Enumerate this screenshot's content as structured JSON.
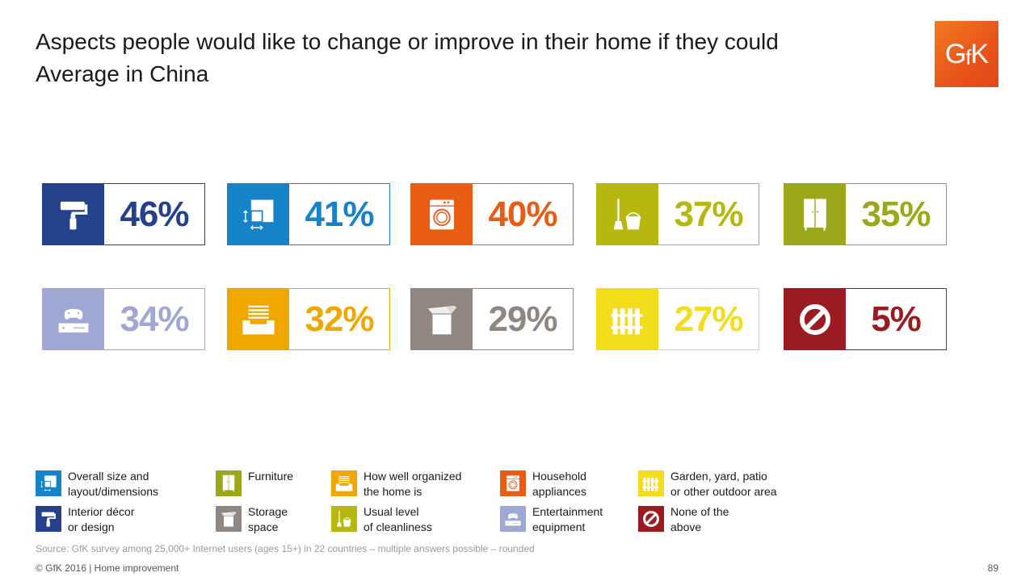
{
  "title": {
    "line1": "Aspects people would like to change or improve in their home if they could",
    "line2": "Average in China"
  },
  "logo": "GfK",
  "chart_data": {
    "type": "table",
    "categories": [
      "Interior décor or design",
      "Overall size and layout/dimensions",
      "Household appliances",
      "Usual level of cleanliness",
      "Furniture",
      "Entertainment equipment",
      "How well organized the home is",
      "Storage space",
      "Garden, yard, patio or other outdoor area",
      "None of the above"
    ],
    "values": [
      46,
      41,
      40,
      37,
      35,
      34,
      32,
      29,
      27,
      5
    ],
    "labels": [
      "46%",
      "41%",
      "40%",
      "37%",
      "35%",
      "34%",
      "32%",
      "29%",
      "27%",
      "5%"
    ],
    "colors": [
      "#25418a",
      "#1683c9",
      "#e85d13",
      "#b6b80e",
      "#9aa81a",
      "#9ea8d2",
      "#f0a800",
      "#8f8780",
      "#f3dc1a",
      "#9c1b22"
    ],
    "icons": [
      "paint-roller-icon",
      "layout-dimensions-icon",
      "washing-machine-icon",
      "broom-bucket-icon",
      "wardrobe-icon",
      "game-console-icon",
      "drawer-organizer-icon",
      "storage-box-icon",
      "fence-icon",
      "prohibited-icon"
    ]
  },
  "legend": [
    {
      "line1": "Overall size and",
      "line2": "layout/dimensions",
      "color": "#1683c9",
      "icon": "layout-dimensions-icon"
    },
    {
      "line1": "Furniture",
      "line2": "",
      "color": "#9aa81a",
      "icon": "wardrobe-icon"
    },
    {
      "line1": "How well organized",
      "line2": "the home is",
      "color": "#f0a800",
      "icon": "drawer-organizer-icon"
    },
    {
      "line1": "Household",
      "line2": "appliances",
      "color": "#e85d13",
      "icon": "washing-machine-icon"
    },
    {
      "line1": "Garden, yard, patio",
      "line2": "or other outdoor area",
      "color": "#f3dc1a",
      "icon": "fence-icon"
    },
    {
      "line1": "Interior décor",
      "line2": "or design",
      "color": "#25418a",
      "icon": "paint-roller-icon"
    },
    {
      "line1": "Storage",
      "line2": "space",
      "color": "#8f8780",
      "icon": "storage-box-icon"
    },
    {
      "line1": "Usual level",
      "line2": "of cleanliness",
      "color": "#b6b80e",
      "icon": "broom-bucket-icon"
    },
    {
      "line1": "Entertainment",
      "line2": "equipment",
      "color": "#9ea8d2",
      "icon": "game-console-icon"
    },
    {
      "line1": "None of the",
      "line2": "above",
      "color": "#9c1b22",
      "icon": "prohibited-icon"
    }
  ],
  "source": "Source: GfK survey among 25,000+ Internet users (ages 15+) in 22 countries – multiple answers possible – rounded",
  "footer": "© GfK 2016 | Home improvement",
  "page_number": "89"
}
